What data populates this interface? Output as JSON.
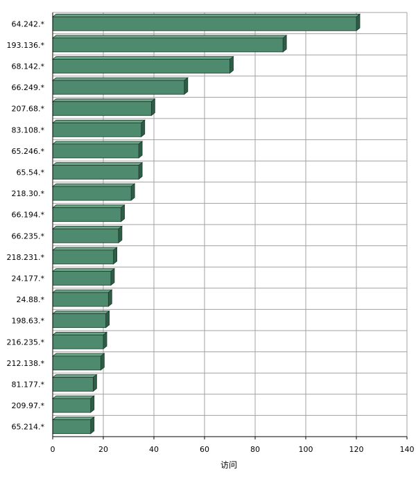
{
  "chart_data": {
    "type": "bar",
    "orientation": "horizontal",
    "categories": [
      "64.242.*",
      "193.136.*",
      "68.142.*",
      "66.249.*",
      "207.68.*",
      "83.108.*",
      "65.246.*",
      "65.54.*",
      "218.30.*",
      "66.194.*",
      "66.235.*",
      "218.231.*",
      "24.177.*",
      "24.88.*",
      "198.63.*",
      "216.235.*",
      "212.138.*",
      "81.177.*",
      "209.97.*",
      "65.214.*"
    ],
    "values": [
      120,
      91,
      70,
      52,
      39,
      35,
      34,
      34,
      31,
      27,
      26,
      24,
      23,
      22,
      21,
      20,
      19,
      16,
      15,
      15
    ],
    "xlabel": "访问",
    "ylabel": "",
    "xlim": [
      0,
      140
    ],
    "x_ticks": [
      0,
      20,
      40,
      60,
      80,
      100,
      120,
      140
    ],
    "grid": true,
    "colors": {
      "bar_front": "#4e8b6e",
      "bar_top": "#6aa386",
      "bar_side": "#2f5c47",
      "grid": "#a0a0a0",
      "axis": "#000000"
    }
  }
}
